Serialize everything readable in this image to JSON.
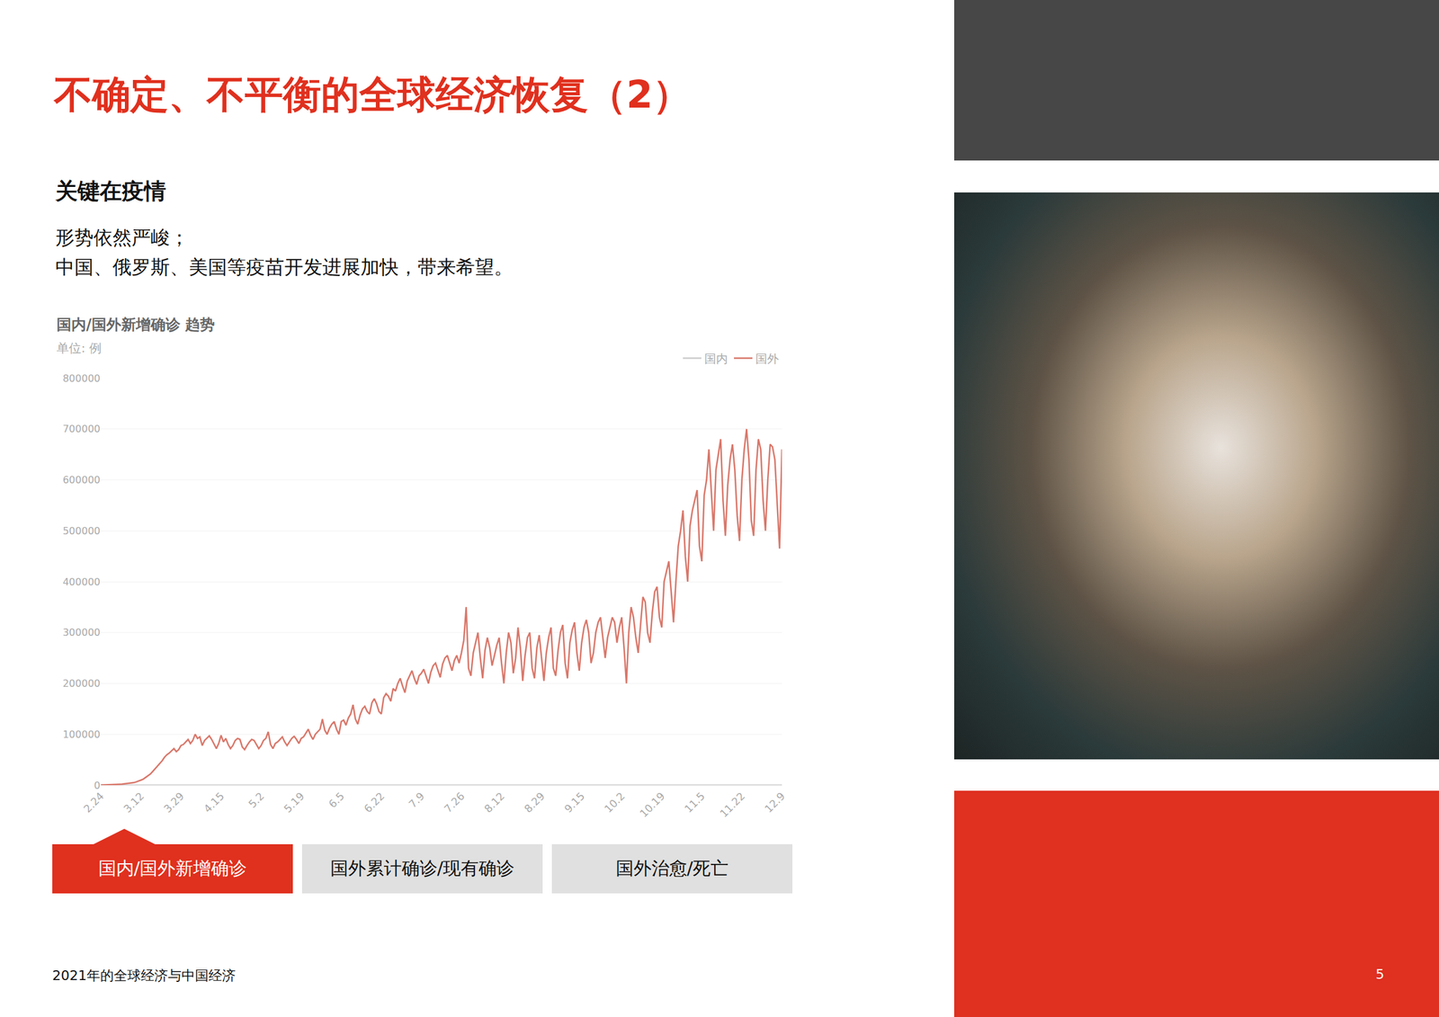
{
  "page": {
    "title": "不确定、不平衡的全球经济恢复（2）",
    "heading": "关键在疫情",
    "body": [
      "形势依然严峻；",
      "中国、俄罗斯、美国等疫苗开发进展加快，带来希望。"
    ],
    "tabs": [
      "国内/国外新增确诊",
      "国外累计确诊/现有确诊",
      "国外治愈/死亡"
    ],
    "footer": "2021年的全球经济与中国经济",
    "page_number": "5"
  },
  "chart_data": {
    "type": "line",
    "title": "国内/国外新增确诊 趋势",
    "subtitle": "单位: 例",
    "categories": [
      "2.24",
      null,
      null,
      null,
      null,
      null,
      null,
      null,
      null,
      null,
      null,
      null,
      null,
      null,
      null,
      null,
      null,
      "3.12",
      null,
      null,
      null,
      null,
      null,
      null,
      null,
      null,
      null,
      null,
      null,
      null,
      null,
      null,
      null,
      null,
      "3.29",
      null,
      null,
      null,
      null,
      null,
      null,
      null,
      null,
      null,
      null,
      null,
      null,
      null,
      null,
      null,
      null,
      "4.15",
      null,
      null,
      null,
      null,
      null,
      null,
      null,
      null,
      null,
      null,
      null,
      null,
      null,
      null,
      null,
      null,
      "5.2",
      null,
      null,
      null,
      null,
      null,
      null,
      null,
      null,
      null,
      null,
      null,
      null,
      null,
      null,
      null,
      null,
      "5.19",
      null,
      null,
      null,
      null,
      null,
      null,
      null,
      null,
      null,
      null,
      null,
      null,
      null,
      null,
      null,
      null,
      "6.5",
      null,
      null,
      null,
      null,
      null,
      null,
      null,
      null,
      null,
      null,
      null,
      null,
      null,
      null,
      null,
      null,
      "6.22",
      null,
      null,
      null,
      null,
      null,
      null,
      null,
      null,
      null,
      null,
      null,
      null,
      null,
      null,
      null,
      null,
      "7.9",
      null,
      null,
      null,
      null,
      null,
      null,
      null,
      null,
      null,
      null,
      null,
      null,
      null,
      null,
      null,
      null,
      "7.26",
      null,
      null,
      null,
      null,
      null,
      null,
      null,
      null,
      null,
      null,
      null,
      null,
      null,
      null,
      null,
      null,
      "8.12",
      null,
      null,
      null,
      null,
      null,
      null,
      null,
      null,
      null,
      null,
      null,
      null,
      null,
      null,
      null,
      null,
      "8.29",
      null,
      null,
      null,
      null,
      null,
      null,
      null,
      null,
      null,
      null,
      null,
      null,
      null,
      null,
      null,
      null,
      "9.15",
      null,
      null,
      null,
      null,
      null,
      null,
      null,
      null,
      null,
      null,
      null,
      null,
      null,
      null,
      null,
      null,
      "10.2",
      null,
      null,
      null,
      null,
      null,
      null,
      null,
      null,
      null,
      null,
      null,
      null,
      null,
      null,
      null,
      null,
      "10.19",
      null,
      null,
      null,
      null,
      null,
      null,
      null,
      null,
      null,
      null,
      null,
      null,
      null,
      null,
      null,
      null,
      "11.5",
      null,
      null,
      null,
      null,
      null,
      null,
      null,
      null,
      null,
      null,
      null,
      null,
      null,
      null,
      null,
      null,
      "11.22",
      null,
      null,
      null,
      null,
      null,
      null,
      null,
      null,
      null,
      null,
      null,
      null,
      null,
      null,
      null,
      null,
      "12.9"
    ],
    "series": [
      {
        "name": "国内",
        "color": "#cccccc",
        "values": [
          0,
          0,
          0,
          0,
          0,
          0,
          0,
          0,
          0,
          0,
          0,
          0,
          0,
          0,
          0,
          0,
          0,
          0,
          0,
          0,
          0,
          0,
          0,
          0,
          0,
          0,
          0,
          0,
          0,
          0,
          0,
          0,
          0,
          0,
          0,
          0,
          0,
          0,
          0,
          0,
          0,
          0,
          0,
          0,
          0,
          0,
          0,
          0,
          0,
          0,
          0,
          0,
          0,
          0,
          0,
          0,
          0,
          0,
          0,
          0,
          0,
          0,
          0,
          0,
          0,
          0,
          0,
          0,
          0,
          0,
          0,
          0,
          0,
          0,
          0,
          0,
          0,
          0,
          0,
          0,
          0,
          0,
          0,
          0,
          0,
          0,
          0,
          0,
          0,
          0,
          0,
          0,
          0,
          0,
          0,
          0,
          0,
          0,
          0,
          0,
          0,
          0,
          0,
          0,
          0,
          0,
          0,
          0,
          0,
          0,
          0,
          0,
          0,
          0,
          0,
          0,
          0,
          0,
          0,
          0,
          0,
          0,
          0,
          0,
          0,
          0,
          0,
          0,
          0,
          0,
          0,
          0,
          0,
          0,
          0,
          0,
          0,
          0,
          0,
          0,
          0,
          0,
          0,
          0,
          0,
          0,
          0,
          0,
          0,
          0,
          0,
          0,
          0,
          0,
          0,
          0,
          0,
          0,
          0,
          0,
          0,
          0,
          0,
          0,
          0,
          0,
          0,
          0,
          0,
          0,
          0,
          0,
          0,
          0,
          0,
          0,
          0,
          0,
          0,
          0,
          0,
          0,
          0,
          0,
          0,
          0,
          0,
          0,
          0,
          0,
          0,
          0,
          0,
          0,
          0,
          0,
          0,
          0,
          0,
          0,
          0,
          0,
          0,
          0,
          0,
          0,
          0,
          0,
          0,
          0,
          0,
          0,
          0,
          0,
          0,
          0,
          0,
          0,
          0,
          0,
          0,
          0,
          0,
          0,
          0,
          0,
          0,
          0,
          0,
          0,
          0,
          0,
          0,
          0,
          0,
          0,
          0,
          0,
          0,
          0,
          0,
          0,
          0,
          0,
          0,
          0,
          0,
          0,
          0,
          0,
          0,
          0,
          0,
          0,
          0,
          0,
          0,
          0,
          0,
          0,
          0,
          0,
          0,
          0,
          0,
          0,
          0,
          0,
          0,
          0,
          0,
          0,
          0,
          0,
          0,
          0,
          0,
          0,
          0,
          0,
          0,
          0,
          0,
          0,
          0,
          0,
          0,
          0,
          0,
          0
        ]
      },
      {
        "name": "国外",
        "color": "#d9776a",
        "values": [
          200,
          300,
          400,
          500,
          700,
          900,
          1200,
          1500,
          1800,
          2000,
          2500,
          3000,
          3500,
          4000,
          5000,
          6500,
          8000,
          10000,
          12000,
          15000,
          18000,
          22000,
          27000,
          32000,
          38000,
          42000,
          48000,
          55000,
          60000,
          63000,
          68000,
          72000,
          66000,
          70000,
          78000,
          80000,
          85000,
          90000,
          82000,
          88000,
          100000,
          92000,
          95000,
          78000,
          88000,
          92000,
          97000,
          90000,
          80000,
          72000,
          82000,
          98000,
          85000,
          92000,
          80000,
          72000,
          78000,
          88000,
          92000,
          90000,
          75000,
          70000,
          78000,
          85000,
          90000,
          88000,
          80000,
          72000,
          78000,
          88000,
          92000,
          105000,
          80000,
          72000,
          82000,
          85000,
          90000,
          95000,
          85000,
          78000,
          85000,
          92000,
          96000,
          90000,
          82000,
          92000,
          95000,
          102000,
          110000,
          98000,
          90000,
          100000,
          105000,
          110000,
          130000,
          108000,
          100000,
          112000,
          120000,
          125000,
          110000,
          100000,
          125000,
          128000,
          118000,
          132000,
          140000,
          158000,
          130000,
          120000,
          138000,
          150000,
          155000,
          145000,
          140000,
          162000,
          170000,
          160000,
          145000,
          140000,
          172000,
          180000,
          175000,
          165000,
          190000,
          185000,
          200000,
          210000,
          195000,
          182000,
          205000,
          215000,
          225000,
          210000,
          198000,
          215000,
          220000,
          228000,
          215000,
          200000,
          222000,
          235000,
          240000,
          225000,
          212000,
          238000,
          250000,
          255000,
          240000,
          225000,
          245000,
          255000,
          240000,
          260000,
          285000,
          350000,
          230000,
          215000,
          260000,
          280000,
          300000,
          250000,
          210000,
          265000,
          290000,
          270000,
          235000,
          255000,
          275000,
          290000,
          240000,
          200000,
          260000,
          300000,
          280000,
          220000,
          250000,
          310000,
          270000,
          205000,
          255000,
          290000,
          300000,
          230000,
          210000,
          270000,
          295000,
          250000,
          205000,
          260000,
          290000,
          310000,
          230000,
          215000,
          265000,
          300000,
          315000,
          240000,
          210000,
          280000,
          305000,
          320000,
          260000,
          225000,
          280000,
          310000,
          325000,
          300000,
          240000,
          260000,
          300000,
          320000,
          330000,
          290000,
          250000,
          290000,
          310000,
          330000,
          320000,
          280000,
          310000,
          330000,
          270000,
          200000,
          300000,
          350000,
          330000,
          290000,
          260000,
          320000,
          370000,
          360000,
          300000,
          280000,
          340000,
          380000,
          390000,
          330000,
          310000,
          400000,
          420000,
          440000,
          380000,
          320000,
          400000,
          470000,
          500000,
          540000,
          450000,
          400000,
          510000,
          540000,
          560000,
          580000,
          470000,
          440000,
          570000,
          600000,
          660000,
          580000,
          500000,
          620000,
          650000,
          680000,
          560000,
          490000,
          590000,
          640000,
          670000,
          620000,
          530000,
          480000,
          600000,
          660000,
          700000,
          640000,
          520000,
          490000,
          620000,
          680000,
          660000,
          560000,
          500000,
          600000,
          670000,
          665000,
          640000,
          560000,
          465000,
          660000
        ]
      }
    ],
    "ylim": [
      0,
      800000
    ],
    "yticks": [
      0,
      100000,
      200000,
      300000,
      400000,
      500000,
      600000,
      700000,
      800000
    ],
    "grid": true,
    "legend": "top right"
  }
}
